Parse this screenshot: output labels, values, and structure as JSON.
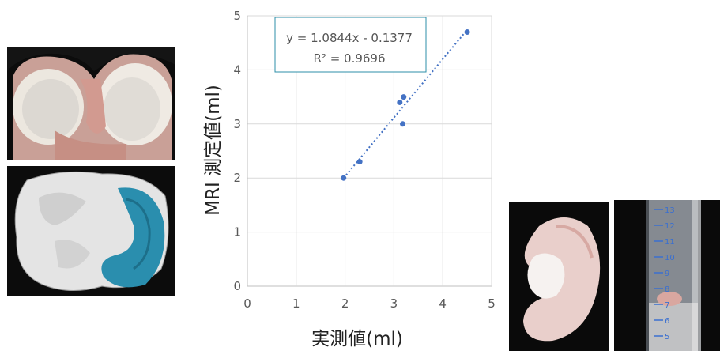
{
  "chart_data": {
    "type": "scatter",
    "xlabel": "実測値(ml)",
    "ylabel": "MRI 測定値(ml)",
    "xlim": [
      0,
      5
    ],
    "ylim": [
      0,
      5
    ],
    "xticks": [
      "0",
      "1",
      "2",
      "3",
      "4",
      "5"
    ],
    "yticks": [
      "0",
      "1",
      "2",
      "3",
      "4",
      "5"
    ],
    "grid": true,
    "points": [
      {
        "x": 1.97,
        "y": 2.0
      },
      {
        "x": 2.3,
        "y": 2.3
      },
      {
        "x": 3.12,
        "y": 3.4
      },
      {
        "x": 3.2,
        "y": 3.5
      },
      {
        "x": 3.18,
        "y": 3.0
      },
      {
        "x": 4.5,
        "y": 4.7
      }
    ],
    "trendline": {
      "slope": 1.0844,
      "intercept": -0.1377,
      "x_range": [
        1.97,
        4.5
      ],
      "style": "dotted"
    },
    "annotation": {
      "equation": "y = 1.0844x - 0.1377",
      "r_squared": "R² = 0.9696"
    },
    "colors": {
      "points": "#4472C4",
      "trendline": "#4472C4",
      "grid": "#d9d9d9",
      "annotation_border": "#2e8fa8"
    }
  },
  "images": {
    "knee_photo": "knee-joint-photo",
    "model_3d": "3d-meniscus-model",
    "meniscus_photo": "meniscus-specimen-photo",
    "cylinder_photo": "graduated-cylinder-photo",
    "cylinder_scale": [
      "13",
      "12",
      "11",
      "10",
      "9",
      "8",
      "7",
      "6",
      "5"
    ]
  }
}
